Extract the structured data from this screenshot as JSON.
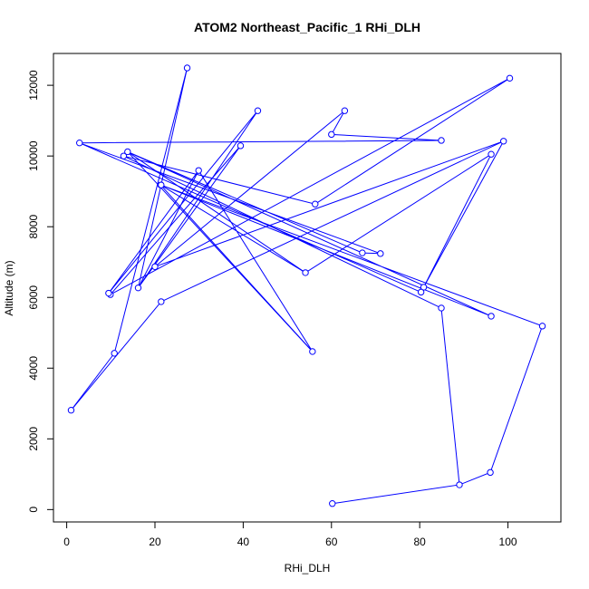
{
  "chart_data": {
    "type": "line",
    "title": "ATOM2 Northeast_Pacific_1 RHi_DLH",
    "xlabel": "RHi_DLH",
    "ylabel": "Altitude (m)",
    "xlim": [
      -3,
      112
    ],
    "ylim": [
      -350,
      12900
    ],
    "x_ticks": [
      0,
      20,
      40,
      60,
      80,
      100
    ],
    "y_ticks": [
      0,
      2000,
      4000,
      6000,
      8000,
      10000,
      12000
    ],
    "grid": false,
    "legend": "none",
    "series": [
      {
        "color": "#0000ff",
        "marker": "open-circle",
        "points": [
          {
            "x": 60.2,
            "y": 170
          },
          {
            "x": 89.0,
            "y": 700
          },
          {
            "x": 84.9,
            "y": 5700
          },
          {
            "x": 12.9,
            "y": 10000
          },
          {
            "x": 56.3,
            "y": 8640
          },
          {
            "x": 100.4,
            "y": 12200
          },
          {
            "x": 9.9,
            "y": 6080
          },
          {
            "x": 39.4,
            "y": 10290
          },
          {
            "x": 16.2,
            "y": 6270
          },
          {
            "x": 43.3,
            "y": 11280
          },
          {
            "x": 9.5,
            "y": 6120
          },
          {
            "x": 29.9,
            "y": 9590
          },
          {
            "x": 55.7,
            "y": 4470
          },
          {
            "x": 21.3,
            "y": 9180
          },
          {
            "x": 54.1,
            "y": 6700
          },
          {
            "x": 96.2,
            "y": 10050
          },
          {
            "x": 80.9,
            "y": 6290
          },
          {
            "x": 99.0,
            "y": 10420
          },
          {
            "x": 20.0,
            "y": 6870
          },
          {
            "x": 63.0,
            "y": 11280
          },
          {
            "x": 60.0,
            "y": 10610
          },
          {
            "x": 84.9,
            "y": 10440
          },
          {
            "x": 84.9,
            "y": 10440
          },
          {
            "x": 2.9,
            "y": 10370
          },
          {
            "x": 80.3,
            "y": 6150
          },
          {
            "x": 2.9,
            "y": 10370
          },
          {
            "x": 71.1,
            "y": 7240
          },
          {
            "x": 67.0,
            "y": 7260
          },
          {
            "x": 13.8,
            "y": 10120
          },
          {
            "x": 96.2,
            "y": 5470
          },
          {
            "x": 21.4,
            "y": 9180
          },
          {
            "x": 107.8,
            "y": 5190
          },
          {
            "x": 96.0,
            "y": 1050
          },
          {
            "x": 89.0,
            "y": 700
          }
        ],
        "extra_segments": [
          {
            "from": {
              "x": 27.3,
              "y": 12490
            },
            "to": {
              "x": 10.8,
              "y": 4420
            }
          },
          {
            "from": {
              "x": 10.8,
              "y": 4420
            },
            "to": {
              "x": 1.0,
              "y": 2810
            }
          },
          {
            "from": {
              "x": 1.0,
              "y": 2810
            },
            "to": {
              "x": 21.4,
              "y": 5880
            }
          },
          {
            "from": {
              "x": 21.4,
              "y": 5880
            },
            "to": {
              "x": 99.0,
              "y": 10420
            }
          },
          {
            "from": {
              "x": 27.3,
              "y": 12490
            },
            "to": {
              "x": 16.2,
              "y": 6270
            }
          },
          {
            "from": {
              "x": 29.9,
              "y": 9590
            },
            "to": {
              "x": 16.2,
              "y": 6270
            }
          },
          {
            "from": {
              "x": 13.8,
              "y": 10120
            },
            "to": {
              "x": 55.7,
              "y": 4470
            }
          },
          {
            "from": {
              "x": 13.8,
              "y": 10120
            },
            "to": {
              "x": 54.1,
              "y": 6700
            }
          }
        ]
      }
    ]
  }
}
